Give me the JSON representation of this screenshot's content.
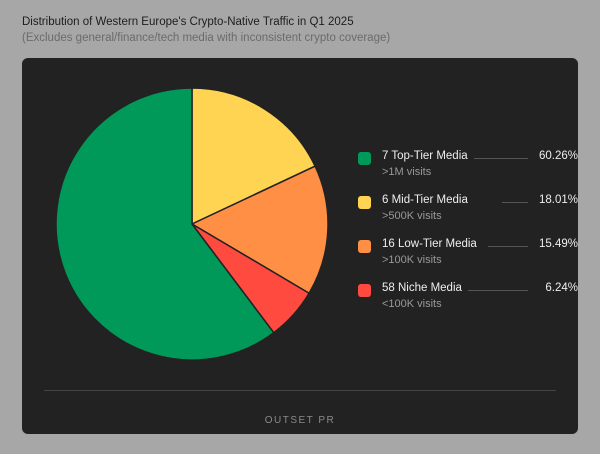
{
  "chart_data": {
    "type": "pie",
    "title": "Distribution of Western Europe's Crypto-Native Traffic in Q1 2025",
    "subtitle": "(Excludes general/finance/tech media with inconsistent crypto coverage)",
    "legend_placement": "right",
    "slices": [
      {
        "label": "6 Mid-Tier Media",
        "sub": ">500K visits",
        "value": 18.01,
        "pct": "18.01%",
        "color": "#ffd452"
      },
      {
        "label": "16 Low-Tier Media",
        "sub": ">100K visits",
        "value": 15.49,
        "pct": "15.49%",
        "color": "#ff8f45"
      },
      {
        "label": "58 Niche Media",
        "sub": "<100K visits",
        "value": 6.24,
        "pct": "6.24%",
        "color": "#ff4a40"
      },
      {
        "label": "7 Top-Tier Media",
        "sub": ">1M visits",
        "value": 60.26,
        "pct": "60.26%",
        "color": "#00995a"
      }
    ],
    "legend_order": [
      3,
      0,
      1,
      2
    ]
  },
  "footer": {
    "logo": "OUTSET PR"
  }
}
